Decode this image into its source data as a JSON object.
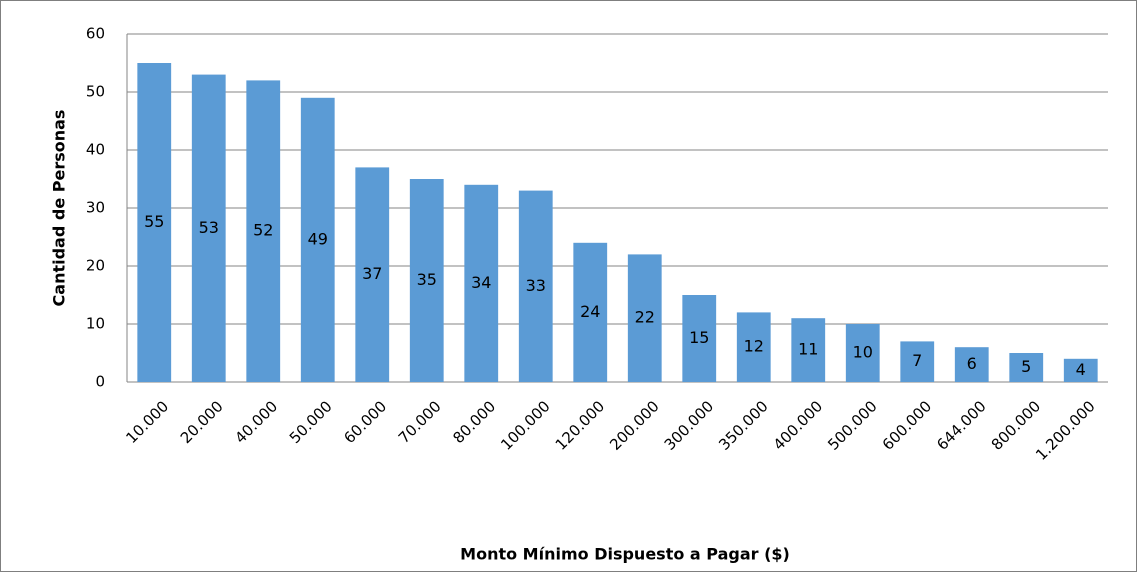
{
  "chart_data": {
    "type": "bar",
    "x_label": "Monto Mínimo Dispuesto a Pagar ($)",
    "y_label": "Cantidad de Personas",
    "categories": [
      "10.000",
      "20.000",
      "40.000",
      "50.000",
      "60.000",
      "70.000",
      "80.000",
      "100.000",
      "120.000",
      "200.000",
      "300.000",
      "350.000",
      "400.000",
      "500.000",
      "600.000",
      "644.000",
      "800.000",
      "1.200.000"
    ],
    "values": [
      55,
      53,
      52,
      49,
      37,
      35,
      34,
      33,
      24,
      22,
      15,
      12,
      11,
      10,
      7,
      6,
      5,
      4
    ],
    "color": "#5b9bd5",
    "ylim": [
      0,
      60
    ],
    "yticks": [
      0,
      10,
      20,
      30,
      40,
      50,
      60
    ],
    "grid": true
  }
}
